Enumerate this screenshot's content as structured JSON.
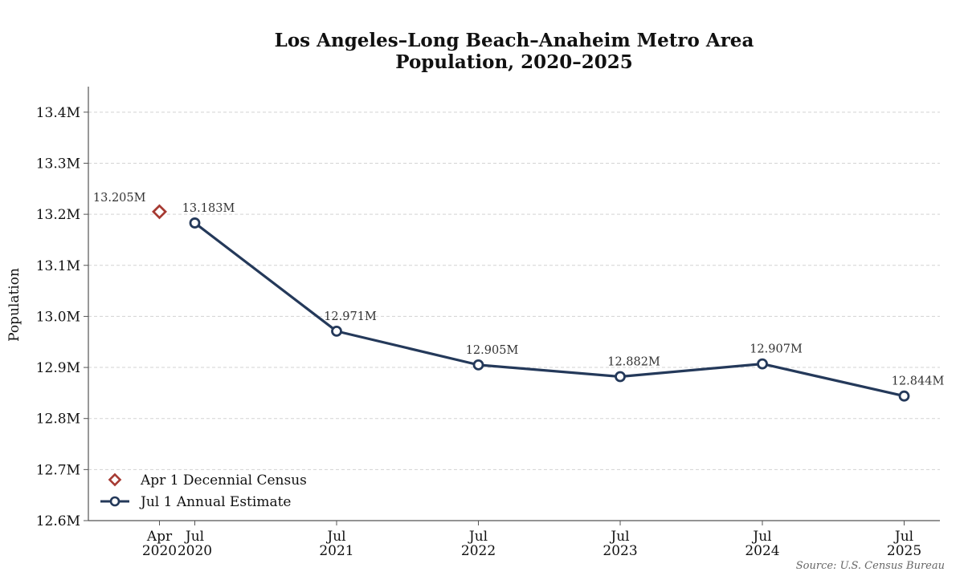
{
  "chart_data": {
    "type": "line",
    "title": [
      "Los Angeles–Long Beach–Anaheim Metro Area",
      "Population, 2020–2025"
    ],
    "ylabel": "Population",
    "ylim": [
      12600000,
      13450000
    ],
    "yticks": [
      12600000,
      12700000,
      12800000,
      12900000,
      13000000,
      13100000,
      13200000,
      13300000,
      13400000
    ],
    "ytick_labels": [
      "12.6M",
      "12.7M",
      "12.8M",
      "12.9M",
      "13.0M",
      "13.1M",
      "13.2M",
      "13.3M",
      "13.4M"
    ],
    "xlim": [
      "2019-10-01",
      "2025-10-01"
    ],
    "grid": "horizontal dashed",
    "legend_position": "lower-left",
    "series": [
      {
        "name": "Apr 1 Decennial Census",
        "marker": "diamond",
        "color": "#a63a32",
        "points": [
          {
            "date": "2020-04-01",
            "tick_label": [
              "Apr",
              "2020"
            ],
            "value": 13205000,
            "label": "13.205M"
          }
        ]
      },
      {
        "name": "Jul 1 Annual Estimate",
        "marker": "circle",
        "color": "#24395a",
        "points": [
          {
            "date": "2020-07-01",
            "tick_label": [
              "Jul",
              "2020"
            ],
            "value": 13183000,
            "label": "13.183M"
          },
          {
            "date": "2021-07-01",
            "tick_label": [
              "Jul",
              "2021"
            ],
            "value": 12971000,
            "label": "12.971M"
          },
          {
            "date": "2022-07-01",
            "tick_label": [
              "Jul",
              "2022"
            ],
            "value": 12905000,
            "label": "12.905M"
          },
          {
            "date": "2023-07-01",
            "tick_label": [
              "Jul",
              "2023"
            ],
            "value": 12882000,
            "label": "12.882M"
          },
          {
            "date": "2024-07-01",
            "tick_label": [
              "Jul",
              "2024"
            ],
            "value": 12907000,
            "label": "12.907M"
          },
          {
            "date": "2025-07-01",
            "tick_label": [
              "Jul",
              "2025"
            ],
            "value": 12844000,
            "label": "12.844M"
          }
        ]
      }
    ],
    "source": "Source: U.S. Census Bureau"
  }
}
